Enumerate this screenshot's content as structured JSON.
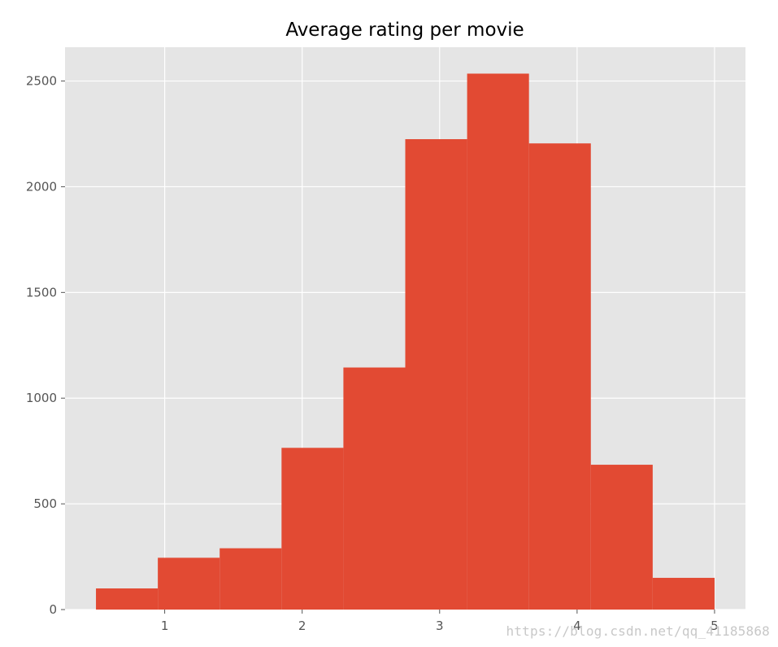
{
  "chart_data": {
    "type": "bar",
    "title": "Average rating per movie",
    "xlabel": "",
    "ylabel": "",
    "bin_edges": [
      0.5,
      0.95,
      1.4,
      1.85,
      2.3,
      2.75,
      3.2,
      3.65,
      4.1,
      4.55,
      5.0
    ],
    "values": [
      100,
      245,
      290,
      765,
      1145,
      2225,
      2535,
      2205,
      685,
      150
    ],
    "xlim": [
      0.275,
      5.225
    ],
    "ylim": [
      0,
      2660
    ],
    "xticks": [
      1,
      2,
      3,
      4,
      5
    ],
    "xtick_labels": [
      "1",
      "2",
      "3",
      "4",
      "5"
    ],
    "yticks": [
      0,
      500,
      1000,
      1500,
      2000,
      2500
    ],
    "ytick_labels": [
      "0",
      "500",
      "1000",
      "1500",
      "2000",
      "2500"
    ],
    "grid": true,
    "bar_color": "#E24A33",
    "background_color": "#E5E5E5",
    "grid_color": "#FFFFFF"
  },
  "watermark": "https://blog.csdn.net/qq_41185868"
}
